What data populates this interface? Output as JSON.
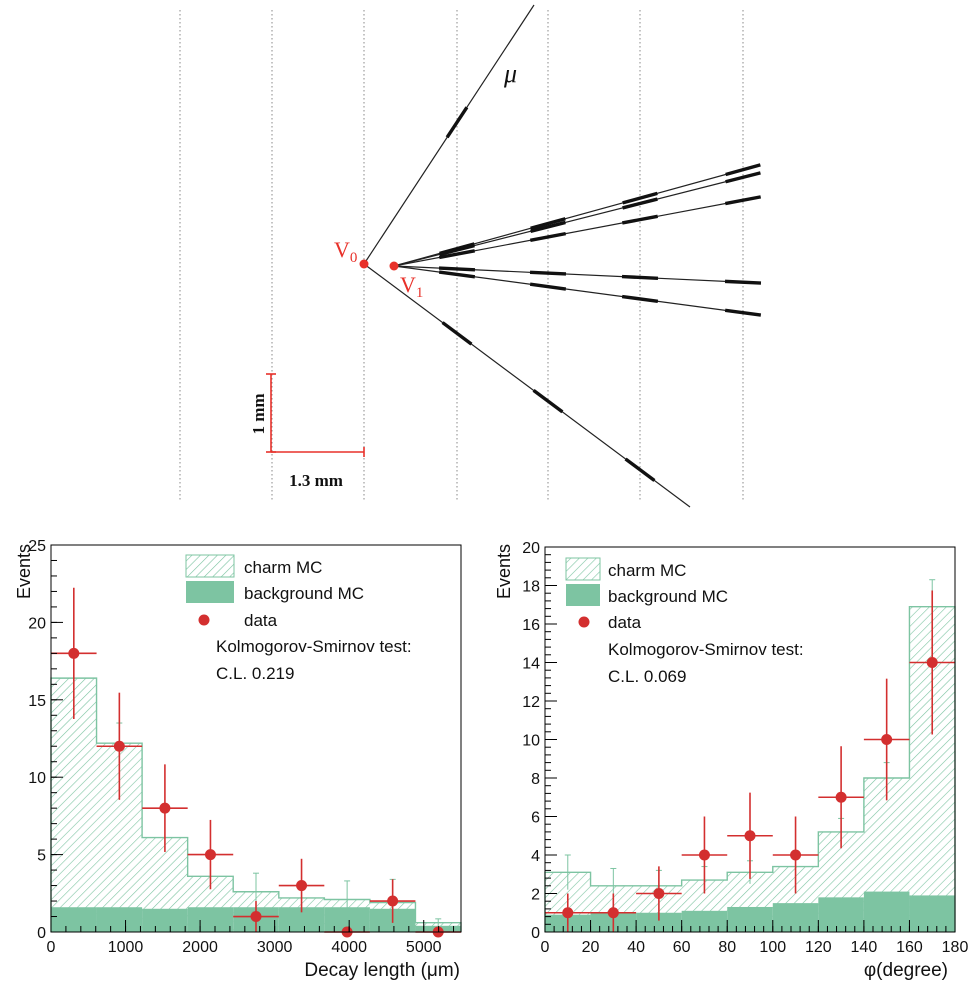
{
  "event_display": {
    "vertex0_label": "V",
    "vertex0_sub": "0",
    "vertex1_label": "V",
    "vertex1_sub": "1",
    "muon_label": "μ",
    "scale_vertical": "1 mm",
    "scale_horizontal": "1.3 mm",
    "colors": {
      "vertex": "#e8312a",
      "track": "#222222",
      "plane": "#888888"
    }
  },
  "chart_data": [
    {
      "type": "bar",
      "xlabel": "Decay length (μm)",
      "ylabel": "Events",
      "xlim": [
        0,
        5500
      ],
      "ylim": [
        0,
        25
      ],
      "xticks": [
        0,
        1000,
        2000,
        3000,
        4000,
        5000
      ],
      "yticks": [
        0,
        5,
        10,
        15,
        20,
        25
      ],
      "bin_edges": [
        0,
        611,
        1222,
        1833,
        2444,
        3056,
        3667,
        4278,
        4889,
        5500
      ],
      "legend": {
        "placement": "top-right",
        "entries": [
          "charm MC",
          "background MC",
          "data"
        ],
        "note_line1": "Kolmogorov-Smirnov test:",
        "note_line2": "C.L. 0.219"
      },
      "series": [
        {
          "name": "charm MC",
          "values": [
            16.4,
            12.2,
            6.1,
            3.6,
            2.6,
            2.2,
            2.1,
            1.9,
            0.6
          ],
          "errors": [
            0,
            1.3,
            0,
            0,
            1.2,
            0.6,
            1.2,
            1.5,
            0.25
          ]
        },
        {
          "name": "background MC",
          "values": [
            1.6,
            1.6,
            1.5,
            1.6,
            1.6,
            1.6,
            1.6,
            1.5,
            0.4
          ]
        },
        {
          "name": "data",
          "x": [
            306,
            917,
            1528,
            2139,
            2750,
            3361,
            3972,
            4583,
            5194
          ],
          "values": [
            18,
            12,
            8,
            5,
            1,
            3,
            0,
            2,
            0
          ],
          "errors": [
            4.24,
            3.46,
            2.83,
            2.24,
            1.0,
            1.73,
            0,
            1.41,
            0
          ]
        }
      ],
      "colors": {
        "mc": "#7dc4a2",
        "data": "#d32f2f"
      }
    },
    {
      "type": "bar",
      "xlabel": "φ(degree)",
      "ylabel": "Events",
      "xlim": [
        0,
        180
      ],
      "ylim": [
        0,
        20
      ],
      "xticks": [
        0,
        20,
        40,
        60,
        80,
        100,
        120,
        140,
        160,
        180
      ],
      "yticks": [
        0,
        2,
        4,
        6,
        8,
        10,
        12,
        14,
        16,
        18,
        20
      ],
      "bin_edges": [
        0,
        20,
        40,
        60,
        80,
        100,
        120,
        140,
        160,
        180
      ],
      "legend": {
        "placement": "top-left",
        "entries": [
          "charm MC",
          "background MC",
          "data"
        ],
        "note_line1": "Kolmogorov-Smirnov test:",
        "note_line2": "C.L. 0.069"
      },
      "series": [
        {
          "name": "charm MC",
          "values": [
            3.1,
            2.4,
            2.4,
            2.7,
            3.1,
            3.4,
            5.2,
            8.0,
            16.9
          ],
          "errors": [
            0.9,
            0.9,
            0.8,
            0.7,
            0.6,
            0.6,
            0.7,
            0.8,
            1.4
          ]
        },
        {
          "name": "background MC",
          "values": [
            0.9,
            1.0,
            1.0,
            1.1,
            1.3,
            1.5,
            1.8,
            2.1,
            1.9
          ]
        },
        {
          "name": "data",
          "x": [
            10,
            30,
            50,
            70,
            90,
            110,
            130,
            150,
            170
          ],
          "values": [
            1,
            1,
            2,
            4,
            5,
            4,
            7,
            10,
            14
          ],
          "errors": [
            1.0,
            1.0,
            1.41,
            2.0,
            2.24,
            2.0,
            2.65,
            3.16,
            3.74
          ]
        }
      ],
      "colors": {
        "mc": "#7dc4a2",
        "data": "#d32f2f"
      }
    }
  ]
}
